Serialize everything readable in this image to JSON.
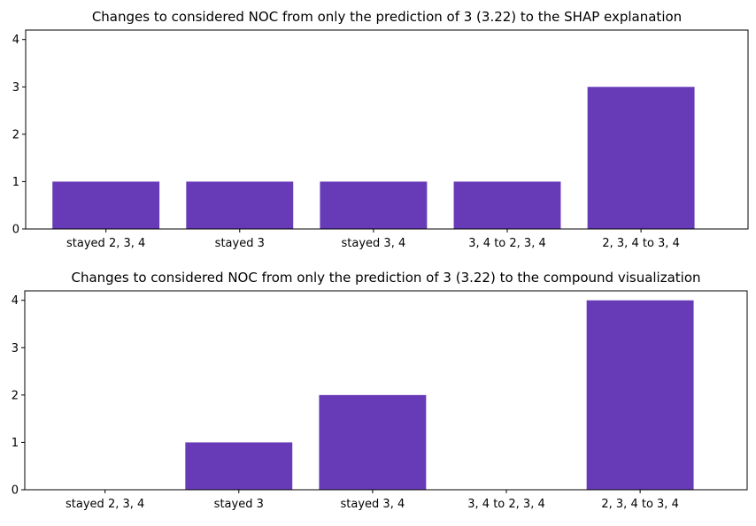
{
  "chart_data": [
    {
      "type": "bar",
      "title": "Changes to considered NOC from only the prediction of 3 (3.22) to the SHAP explanation",
      "xlabel": "",
      "ylabel": "",
      "categories": [
        "stayed 2, 3, 4",
        "stayed 3",
        "stayed 3, 4",
        "3, 4 to 2, 3, 4",
        "2, 3, 4 to 3, 4"
      ],
      "values": [
        1,
        1,
        1,
        1,
        3
      ],
      "ylim": [
        0,
        4.2
      ],
      "yticks": [
        0,
        1,
        2,
        3,
        4
      ],
      "grid": false,
      "color": "#673ab7"
    },
    {
      "type": "bar",
      "title": "Changes to considered NOC from only the prediction of 3 (3.22) to the compound visualization",
      "xlabel": "",
      "ylabel": "",
      "categories": [
        "stayed 2, 3, 4",
        "stayed 3",
        "stayed 3, 4",
        "3, 4 to 2, 3, 4",
        "2, 3, 4 to 3, 4"
      ],
      "values": [
        0,
        1,
        2,
        0,
        4
      ],
      "ylim": [
        0,
        4.2
      ],
      "yticks": [
        0,
        1,
        2,
        3,
        4
      ],
      "grid": false,
      "color": "#673ab7"
    }
  ]
}
